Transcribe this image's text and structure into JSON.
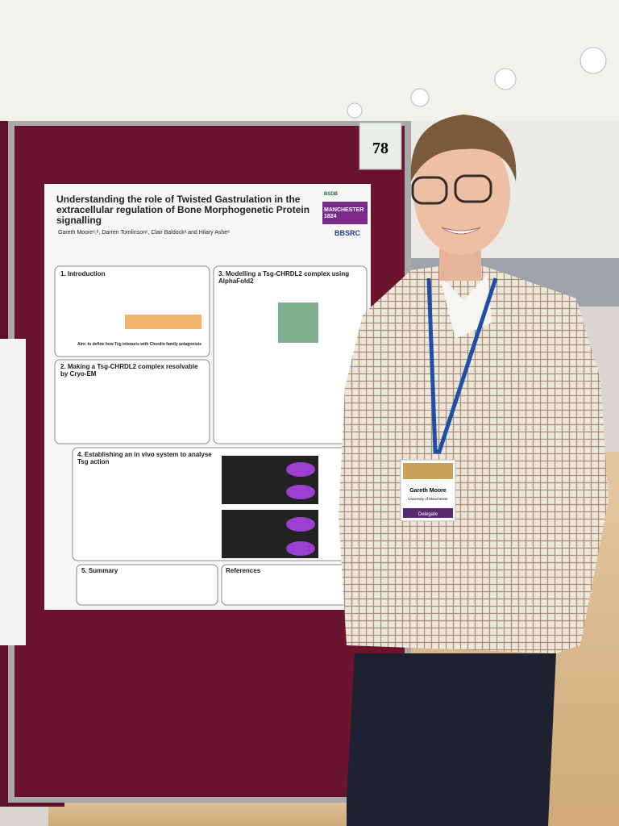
{
  "board_number": "78",
  "poster": {
    "title": "Understanding the role of Twisted Gastrulation in the extracellular regulation of Bone Morphogenetic Protein signalling",
    "authors": "Gareth Mooreᵃ,ᵇ, Darren Tomlinsonᶜ, Clair Baldockᵃ and Hilary Asheᵃ",
    "sections": [
      "1. Introduction",
      "2. Making a Tsg-CHRDL2 complex resolvable by Cryo-EM",
      "3. Modelling a Tsg-CHRDL2 complex using AlphaFold2",
      "4. Establishing an in vivo system to analyse Tsg action",
      "5. Summary",
      "References"
    ],
    "aim": "Aim: to define how Tsg interacts with Chordin family antagonists",
    "logos": [
      "BSDB",
      "MANCHESTER 1824",
      "BBSRC"
    ]
  },
  "badge": {
    "name": "Gareth Moore",
    "affiliation": "University of Manchester",
    "role": "Delegate"
  }
}
